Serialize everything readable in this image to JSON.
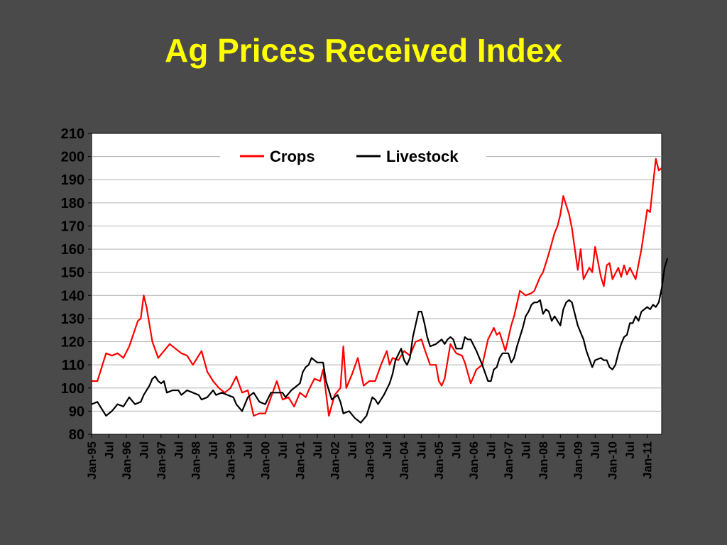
{
  "chart_data": {
    "type": "line",
    "title": "Ag Prices Received Index",
    "xlabel": "",
    "ylabel": "",
    "ylim": [
      80,
      210
    ],
    "yticks": [
      80,
      90,
      100,
      110,
      120,
      130,
      140,
      150,
      160,
      170,
      180,
      190,
      200,
      210
    ],
    "grid": true,
    "legend": "top-center",
    "x_range": [
      "Jan-95",
      "Jun-11"
    ],
    "xtick_labels": [
      "Jan-95",
      "Jul",
      "Jan-96",
      "Jul",
      "Jan-97",
      "Jul",
      "Jan-98",
      "Jul",
      "Jan-99",
      "Jul",
      "Jan-00",
      "Jul",
      "Jan-01",
      "Jul",
      "Jan-02",
      "Jul",
      "Jan-03",
      "Jul",
      "Jan-04",
      "Jul",
      "Jan-05",
      "Jul",
      "Jan-06",
      "Jul",
      "Jan-07",
      "Jul",
      "Jan-08",
      "Jul",
      "Jan-09",
      "Jul",
      "Jan-10",
      "Jul",
      "Jan-11"
    ],
    "series": [
      {
        "name": "Crops",
        "color": "#ff0000",
        "points": [
          [
            "Jan-95",
            103
          ],
          [
            "Mar-95",
            103
          ],
          [
            "Jun-95",
            115
          ],
          [
            "Aug-95",
            114
          ],
          [
            "Oct-95",
            115
          ],
          [
            "Dec-95",
            113
          ],
          [
            "Feb-96",
            118
          ],
          [
            "May-96",
            129
          ],
          [
            "Jun-96",
            130
          ],
          [
            "Jul-96",
            140
          ],
          [
            "Aug-96",
            135
          ],
          [
            "Oct-96",
            120
          ],
          [
            "Dec-96",
            113
          ],
          [
            "Feb-97",
            116
          ],
          [
            "Apr-97",
            119
          ],
          [
            "Jun-97",
            117
          ],
          [
            "Aug-97",
            115
          ],
          [
            "Oct-97",
            114
          ],
          [
            "Dec-97",
            110
          ],
          [
            "Mar-98",
            116
          ],
          [
            "May-98",
            107
          ],
          [
            "Jul-98",
            103
          ],
          [
            "Sep-98",
            100
          ],
          [
            "Nov-98",
            98
          ],
          [
            "Jan-99",
            100
          ],
          [
            "Mar-99",
            105
          ],
          [
            "May-99",
            98
          ],
          [
            "Jul-99",
            99
          ],
          [
            "Sep-99",
            88
          ],
          [
            "Nov-99",
            89
          ],
          [
            "Jan-00",
            89
          ],
          [
            "Mar-00",
            96
          ],
          [
            "May-00",
            103
          ],
          [
            "Jul-00",
            95
          ],
          [
            "Sep-00",
            96
          ],
          [
            "Nov-00",
            92
          ],
          [
            "Jan-01",
            98
          ],
          [
            "Mar-01",
            96
          ],
          [
            "Apr-01",
            99
          ],
          [
            "Jun-01",
            104
          ],
          [
            "Aug-01",
            103
          ],
          [
            "Sep-01",
            108
          ],
          [
            "Nov-01",
            88
          ],
          [
            "Jan-02",
            97
          ],
          [
            "Mar-02",
            100
          ],
          [
            "Apr-02",
            118
          ],
          [
            "May-02",
            100
          ],
          [
            "Jul-02",
            106
          ],
          [
            "Sep-02",
            113
          ],
          [
            "Nov-02",
            101
          ],
          [
            "Jan-03",
            103
          ],
          [
            "Mar-03",
            103
          ],
          [
            "May-03",
            110
          ],
          [
            "Jul-03",
            116
          ],
          [
            "Aug-03",
            110
          ],
          [
            "Sep-03",
            113
          ],
          [
            "Nov-03",
            112
          ],
          [
            "Jan-04",
            116
          ],
          [
            "Mar-04",
            114
          ],
          [
            "May-04",
            120
          ],
          [
            "Jul-04",
            121
          ],
          [
            "Aug-04",
            117
          ],
          [
            "Oct-04",
            110
          ],
          [
            "Dec-04",
            110
          ],
          [
            "Jan-05",
            103
          ],
          [
            "Feb-05",
            101
          ],
          [
            "Mar-05",
            104
          ],
          [
            "May-05",
            119
          ],
          [
            "Jul-05",
            115
          ],
          [
            "Sep-05",
            114
          ],
          [
            "Oct-05",
            111
          ],
          [
            "Dec-05",
            102
          ],
          [
            "Feb-06",
            108
          ],
          [
            "Apr-06",
            110
          ],
          [
            "Jun-06",
            121
          ],
          [
            "Aug-06",
            126
          ],
          [
            "Sep-06",
            123
          ],
          [
            "Oct-06",
            124
          ],
          [
            "Dec-06",
            116
          ],
          [
            "Feb-07",
            127
          ],
          [
            "Mar-07",
            131
          ],
          [
            "May-07",
            142
          ],
          [
            "Jul-07",
            140
          ],
          [
            "Sep-07",
            141
          ],
          [
            "Oct-07",
            142
          ],
          [
            "Dec-07",
            148
          ],
          [
            "Jan-08",
            150
          ],
          [
            "Mar-08",
            158
          ],
          [
            "May-08",
            167
          ],
          [
            "Jun-08",
            170
          ],
          [
            "Jul-08",
            175
          ],
          [
            "Aug-08",
            183
          ],
          [
            "Sep-08",
            179
          ],
          [
            "Oct-08",
            175
          ],
          [
            "Nov-08",
            169
          ],
          [
            "Jan-09",
            151
          ],
          [
            "Feb-09",
            160
          ],
          [
            "Mar-09",
            147
          ],
          [
            "May-09",
            152
          ],
          [
            "Jun-09",
            150
          ],
          [
            "Jul-09",
            161
          ],
          [
            "Sep-09",
            148
          ],
          [
            "Oct-09",
            144
          ],
          [
            "Nov-09",
            153
          ],
          [
            "Dec-09",
            154
          ],
          [
            "Jan-10",
            147
          ],
          [
            "Mar-10",
            152
          ],
          [
            "Apr-10",
            148
          ],
          [
            "May-10",
            153
          ],
          [
            "Jun-10",
            149
          ],
          [
            "Jul-10",
            152
          ],
          [
            "Sep-10",
            147
          ],
          [
            "Nov-10",
            160
          ],
          [
            "Jan-11",
            177
          ],
          [
            "Feb-11",
            176
          ],
          [
            "Mar-11",
            188
          ],
          [
            "Apr-11",
            199
          ],
          [
            "May-11",
            194
          ],
          [
            "Jun-11",
            195
          ]
        ]
      },
      {
        "name": "Livestock",
        "color": "#000000",
        "points": [
          [
            "Jan-95",
            93
          ],
          [
            "Mar-95",
            94
          ],
          [
            "May-95",
            90
          ],
          [
            "Jun-95",
            88
          ],
          [
            "Aug-95",
            90
          ],
          [
            "Oct-95",
            93
          ],
          [
            "Dec-95",
            92
          ],
          [
            "Feb-96",
            96
          ],
          [
            "Apr-96",
            93
          ],
          [
            "Jun-96",
            94
          ],
          [
            "Jul-96",
            97
          ],
          [
            "Sep-96",
            101
          ],
          [
            "Oct-96",
            104
          ],
          [
            "Nov-96",
            105
          ],
          [
            "Dec-96",
            103
          ],
          [
            "Jan-97",
            102
          ],
          [
            "Feb-97",
            103
          ],
          [
            "Mar-97",
            98
          ],
          [
            "May-97",
            99
          ],
          [
            "Jul-97",
            99
          ],
          [
            "Aug-97",
            97
          ],
          [
            "Oct-97",
            99
          ],
          [
            "Dec-97",
            98
          ],
          [
            "Feb-98",
            97
          ],
          [
            "Mar-98",
            95
          ],
          [
            "May-98",
            96
          ],
          [
            "Jul-98",
            99
          ],
          [
            "Aug-98",
            97
          ],
          [
            "Oct-98",
            98
          ],
          [
            "Dec-98",
            97
          ],
          [
            "Feb-99",
            96
          ],
          [
            "Mar-99",
            93
          ],
          [
            "May-99",
            90
          ],
          [
            "Jul-99",
            96
          ],
          [
            "Sep-99",
            98
          ],
          [
            "Nov-99",
            94
          ],
          [
            "Jan-00",
            93
          ],
          [
            "Mar-00",
            98
          ],
          [
            "May-00",
            98
          ],
          [
            "Jul-00",
            98
          ],
          [
            "Aug-00",
            96
          ],
          [
            "Oct-00",
            99
          ],
          [
            "Dec-00",
            101
          ],
          [
            "Jan-01",
            102
          ],
          [
            "Feb-01",
            107
          ],
          [
            "Mar-01",
            109
          ],
          [
            "Apr-01",
            110
          ],
          [
            "May-01",
            113
          ],
          [
            "Jul-01",
            111
          ],
          [
            "Sep-01",
            111
          ],
          [
            "Oct-01",
            103
          ],
          [
            "Dec-01",
            95
          ],
          [
            "Jan-02",
            96
          ],
          [
            "Feb-02",
            97
          ],
          [
            "Mar-02",
            94
          ],
          [
            "Apr-02",
            89
          ],
          [
            "Jun-02",
            90
          ],
          [
            "Aug-02",
            87
          ],
          [
            "Sep-02",
            86
          ],
          [
            "Oct-02",
            85
          ],
          [
            "Dec-02",
            88
          ],
          [
            "Jan-03",
            92
          ],
          [
            "Feb-03",
            96
          ],
          [
            "Mar-03",
            95
          ],
          [
            "Apr-03",
            93
          ],
          [
            "Jun-03",
            97
          ],
          [
            "Aug-03",
            102
          ],
          [
            "Sep-03",
            106
          ],
          [
            "Oct-03",
            112
          ],
          [
            "Dec-03",
            117
          ],
          [
            "Jan-04",
            112
          ],
          [
            "Feb-04",
            110
          ],
          [
            "Mar-04",
            113
          ],
          [
            "Apr-04",
            122
          ],
          [
            "Jun-04",
            133
          ],
          [
            "Jul-04",
            133
          ],
          [
            "Aug-04",
            128
          ],
          [
            "Sep-04",
            122
          ],
          [
            "Oct-04",
            118
          ],
          [
            "Dec-04",
            119
          ],
          [
            "Jan-05",
            120
          ],
          [
            "Feb-05",
            121
          ],
          [
            "Mar-05",
            119
          ],
          [
            "Apr-05",
            121
          ],
          [
            "May-05",
            122
          ],
          [
            "Jun-05",
            121
          ],
          [
            "Jul-05",
            117
          ],
          [
            "Sep-05",
            117
          ],
          [
            "Oct-05",
            122
          ],
          [
            "Nov-05",
            121
          ],
          [
            "Dec-05",
            121
          ],
          [
            "Feb-06",
            116
          ],
          [
            "Apr-06",
            110
          ],
          [
            "Jun-06",
            103
          ],
          [
            "Jul-06",
            103
          ],
          [
            "Aug-06",
            108
          ],
          [
            "Sep-06",
            109
          ],
          [
            "Oct-06",
            113
          ],
          [
            "Nov-06",
            115
          ],
          [
            "Jan-07",
            115
          ],
          [
            "Feb-07",
            111
          ],
          [
            "Mar-07",
            113
          ],
          [
            "Apr-07",
            118
          ],
          [
            "Jun-07",
            126
          ],
          [
            "Jul-07",
            131
          ],
          [
            "Aug-07",
            133
          ],
          [
            "Sep-07",
            136
          ],
          [
            "Oct-07",
            137
          ],
          [
            "Nov-07",
            137
          ],
          [
            "Dec-07",
            138
          ],
          [
            "Jan-08",
            132
          ],
          [
            "Feb-08",
            134
          ],
          [
            "Mar-08",
            133
          ],
          [
            "Apr-08",
            129
          ],
          [
            "May-08",
            131
          ],
          [
            "Jul-08",
            127
          ],
          [
            "Aug-08",
            134
          ],
          [
            "Sep-08",
            137
          ],
          [
            "Oct-08",
            138
          ],
          [
            "Nov-08",
            137
          ],
          [
            "Jan-09",
            127
          ],
          [
            "Mar-09",
            121
          ],
          [
            "Apr-09",
            116
          ],
          [
            "Jun-09",
            109
          ],
          [
            "Jul-09",
            112
          ],
          [
            "Sep-09",
            113
          ],
          [
            "Oct-09",
            112
          ],
          [
            "Nov-09",
            112
          ],
          [
            "Dec-09",
            109
          ],
          [
            "Jan-10",
            108
          ],
          [
            "Feb-10",
            110
          ],
          [
            "Mar-10",
            115
          ],
          [
            "Apr-10",
            119
          ],
          [
            "May-10",
            122
          ],
          [
            "Jun-10",
            123
          ],
          [
            "Jul-10",
            128
          ],
          [
            "Aug-10",
            128
          ],
          [
            "Sep-10",
            131
          ],
          [
            "Oct-10",
            129
          ],
          [
            "Nov-10",
            133
          ],
          [
            "Jan-11",
            135
          ],
          [
            "Feb-11",
            134
          ],
          [
            "Mar-11",
            136
          ],
          [
            "Apr-11",
            135
          ],
          [
            "May-11",
            137
          ],
          [
            "Jun-11",
            143
          ],
          [
            "Jul-11",
            152
          ],
          [
            "Aug-11",
            156
          ]
        ]
      }
    ]
  }
}
